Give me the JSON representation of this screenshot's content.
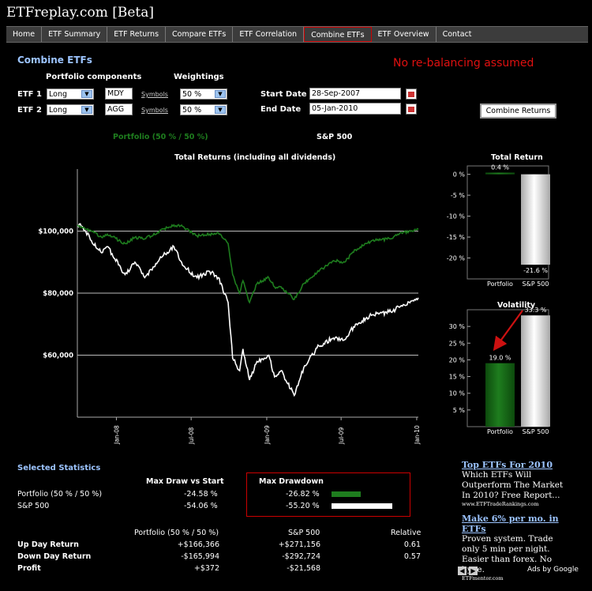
{
  "site": {
    "title": "ETFreplay.com [Beta]"
  },
  "nav": {
    "items": [
      "Home",
      "ETF Summary",
      "ETF Returns",
      "Compare ETFs",
      "ETF Correlation",
      "Combine ETFs",
      "ETF Overview",
      "Contact"
    ],
    "active": "Combine ETFs"
  },
  "page": {
    "heading": "Combine ETFs",
    "notice": "No re-balancing assumed"
  },
  "form": {
    "components_label": "Portfolio components",
    "weightings_label": "Weightings",
    "etf1": {
      "label": "ETF 1",
      "position": "Long",
      "ticker": "MDY",
      "symbols_link": "Symbols",
      "weight": "50 %"
    },
    "etf2": {
      "label": "ETF 2",
      "position": "Long",
      "ticker": "AGG",
      "symbols_link": "Symbols",
      "weight": "50 %"
    },
    "start_date_label": "Start Date",
    "start_date": "28-Sep-2007",
    "end_date_label": "End Date",
    "end_date": "05-Jan-2010",
    "combine_button": "Combine Returns"
  },
  "colors": {
    "portfolio": "#1e7d1e",
    "sp500": "#ffffff",
    "notice": "#e01010",
    "heading": "#9cc4ff",
    "arrow": "#cc1111"
  },
  "chart_data": [
    {
      "type": "line",
      "title": "Total Returns (including all dividends)",
      "legend": [
        "Portfolio (50 % / 50 %)",
        "S&P 500"
      ],
      "y_tick_labels": [
        "$60,000",
        "$80,000",
        "$100,000"
      ],
      "y_ticks": [
        60000,
        80000,
        100000
      ],
      "ylim": [
        40000,
        120000
      ],
      "x_tick_labels": [
        "Jan-08",
        "Jul-08",
        "Jan-09",
        "Jul-09",
        "Jan-10"
      ],
      "x_ticks": [
        "2008-01-01",
        "2008-07-01",
        "2009-01-01",
        "2009-07-01",
        "2010-01-01"
      ],
      "xlim": [
        "2007-09-28",
        "2010-01-05"
      ],
      "series": [
        {
          "name": "Portfolio (50 % / 50 %)",
          "color": "#1e7d1e",
          "x": [
            "2007-09-28",
            "2007-10-10",
            "2007-11-01",
            "2007-11-26",
            "2007-12-10",
            "2008-01-22",
            "2008-02-15",
            "2008-03-10",
            "2008-04-15",
            "2008-05-20",
            "2008-06-10",
            "2008-07-15",
            "2008-08-15",
            "2008-09-05",
            "2008-09-29",
            "2008-10-10",
            "2008-10-27",
            "2008-11-04",
            "2008-11-20",
            "2008-12-08",
            "2009-01-06",
            "2009-01-20",
            "2009-02-05",
            "2009-03-09",
            "2009-04-01",
            "2009-05-08",
            "2009-06-12",
            "2009-07-10",
            "2009-08-05",
            "2009-09-15",
            "2009-10-30",
            "2009-11-25",
            "2010-01-05"
          ],
          "y": [
            102000,
            101000,
            100000,
            98000,
            99000,
            96000,
            98000,
            97500,
            100000,
            102000,
            101500,
            98500,
            99000,
            99500,
            96000,
            86000,
            80000,
            84000,
            77000,
            83000,
            85000,
            82000,
            82000,
            78000,
            83000,
            87000,
            90500,
            90000,
            94000,
            97000,
            97500,
            99500,
            100500
          ]
        },
        {
          "name": "S&P 500",
          "color": "#ffffff",
          "x": [
            "2007-09-28",
            "2007-10-10",
            "2007-11-01",
            "2007-11-26",
            "2007-12-10",
            "2008-01-22",
            "2008-02-15",
            "2008-03-10",
            "2008-04-15",
            "2008-05-20",
            "2008-06-10",
            "2008-07-15",
            "2008-08-15",
            "2008-09-05",
            "2008-09-29",
            "2008-10-10",
            "2008-10-27",
            "2008-11-04",
            "2008-11-20",
            "2008-12-08",
            "2009-01-06",
            "2009-01-20",
            "2009-02-05",
            "2009-03-09",
            "2009-04-01",
            "2009-05-08",
            "2009-06-12",
            "2009-07-10",
            "2009-08-05",
            "2009-09-15",
            "2009-10-30",
            "2009-11-25",
            "2010-01-05"
          ],
          "y": [
            102000,
            101500,
            97000,
            93000,
            95000,
            86000,
            90000,
            85000,
            91000,
            95000,
            89000,
            85000,
            87000,
            85000,
            77000,
            59000,
            55000,
            62000,
            52000,
            58000,
            60000,
            53000,
            55000,
            47000,
            56000,
            63000,
            65500,
            65000,
            70000,
            73000,
            74000,
            76000,
            78500
          ]
        }
      ]
    },
    {
      "type": "bar",
      "title": "Total Return",
      "categories": [
        "Portfolio",
        "S&P 500"
      ],
      "values": [
        0.4,
        -21.6
      ],
      "data_labels": [
        "0.4 %",
        "-21.6 %"
      ],
      "y_tick_labels": [
        "0 %",
        "-5 %",
        "-10 %",
        "-15 %",
        "-20 %"
      ],
      "ylim": [
        -25,
        2
      ]
    },
    {
      "type": "bar",
      "title": "Volatility",
      "categories": [
        "Portfolio",
        "S&P 500"
      ],
      "values": [
        19.0,
        33.3
      ],
      "data_labels": [
        "19.0 %",
        "33.3 %"
      ],
      "y_tick_labels": [
        "5 %",
        "10 %",
        "15 %",
        "20 %",
        "25 %",
        "30 %"
      ],
      "ylim": [
        0,
        35
      ]
    }
  ],
  "stats": {
    "heading": "Selected Statistics",
    "col_draw": "Max Draw vs Start",
    "col_drawdown": "Max Drawdown",
    "rows": [
      {
        "name": "Portfolio (50 % / 50 %)",
        "draw": "-24.58 %",
        "drawdown": "-26.82 %",
        "drawdown_value": 26.82
      },
      {
        "name": "S&P 500",
        "draw": "-54.06 %",
        "drawdown": "-55.20 %",
        "drawdown_value": 55.2
      }
    ],
    "col_portfolio": "Portfolio (50 % / 50 %)",
    "col_sp": "S&P 500",
    "col_relative": "Relative",
    "table": [
      {
        "label": "Up Day Return",
        "portfolio": "+$166,366",
        "sp": "+$271,156",
        "relative": "0.61"
      },
      {
        "label": "Down Day Return",
        "portfolio": "-$165,994",
        "sp": "-$292,724",
        "relative": "0.57"
      },
      {
        "label": "Profit",
        "portfolio": "+$372",
        "sp": "-$21,568",
        "relative": ""
      }
    ]
  },
  "ads": [
    {
      "title": "Top ETFs For 2010",
      "body": "Which ETFs Will Outperform The Market In 2010? Free Report...",
      "url": "www.ETFTradeRankings.com"
    },
    {
      "title": "Make 6% per mo. in ETFs",
      "body": "Proven system. Trade only 5 min per night. Easier than forex. No hype.",
      "url": "ETFmentor.com"
    }
  ],
  "ads_footer": "Ads by Google"
}
